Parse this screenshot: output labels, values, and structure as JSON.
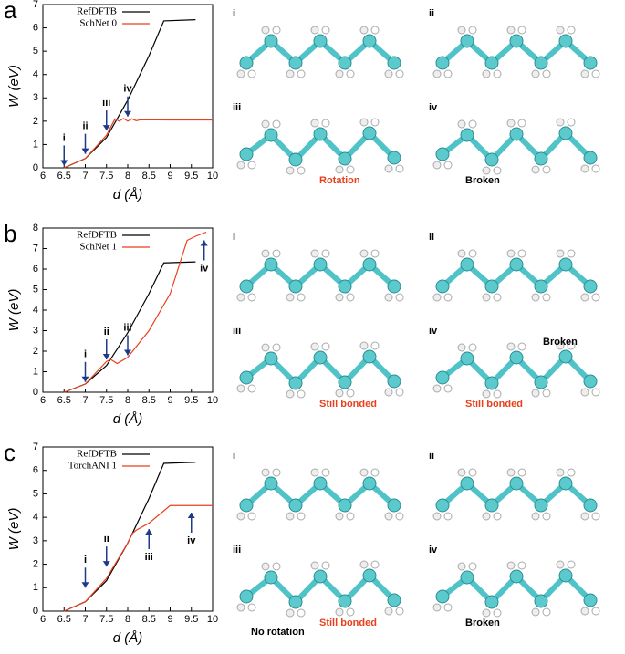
{
  "chart_data": [
    {
      "type": "line",
      "panel": "a",
      "xlabel": "d (Å)",
      "ylabel": "W (eV)",
      "xlim": [
        6,
        10
      ],
      "xticks": [
        6,
        6.5,
        7,
        7.5,
        8,
        8.5,
        9,
        9.5,
        10
      ],
      "ylim": [
        0,
        7
      ],
      "yticks": [
        0,
        1,
        2,
        3,
        4,
        5,
        6,
        7
      ],
      "series": [
        {
          "name": "RefDFTB",
          "color": "#000000",
          "x": [
            6.5,
            7,
            7.5,
            8,
            8.5,
            8.85,
            9.6
          ],
          "values": [
            0,
            0.4,
            1.3,
            2.9,
            4.8,
            6.3,
            6.35
          ]
        },
        {
          "name": "SchNet 0",
          "color": "#e8401c",
          "x": [
            6.5,
            7,
            7.5,
            7.7,
            7.8,
            7.9,
            8,
            8.1,
            8.2,
            8.3,
            9,
            10
          ],
          "values": [
            0,
            0.4,
            1.4,
            2.1,
            2.0,
            2.12,
            2.0,
            2.1,
            2.02,
            2.06,
            2.05,
            2.05
          ]
        }
      ],
      "arrows": [
        {
          "label": "i",
          "x": 6.5,
          "y": 0.1,
          "direction": "down"
        },
        {
          "label": "ii",
          "x": 7,
          "y": 0.6,
          "direction": "down"
        },
        {
          "label": "iii",
          "x": 7.5,
          "y": 1.6,
          "direction": "down"
        },
        {
          "label": "iv",
          "x": 8,
          "y": 2.2,
          "direction": "down"
        }
      ],
      "snapshots": [
        {
          "label": "i"
        },
        {
          "label": "ii"
        },
        {
          "label": "iii",
          "note": "Rotation",
          "note_color": "#e8401c"
        },
        {
          "label": "iv",
          "note": "Broken",
          "note_color": "#000000"
        }
      ]
    },
    {
      "type": "line",
      "panel": "b",
      "xlabel": "d (Å)",
      "ylabel": "W (eV)",
      "xlim": [
        6,
        10
      ],
      "xticks": [
        6,
        6.5,
        7,
        7.5,
        8,
        8.5,
        9,
        9.5,
        10
      ],
      "ylim": [
        0,
        8
      ],
      "yticks": [
        0,
        1,
        2,
        3,
        4,
        5,
        6,
        7,
        8
      ],
      "series": [
        {
          "name": "RefDFTB",
          "color": "#000000",
          "x": [
            6.5,
            7,
            7.5,
            8,
            8.5,
            8.85,
            9.6
          ],
          "values": [
            0,
            0.4,
            1.3,
            2.9,
            4.8,
            6.3,
            6.35
          ]
        },
        {
          "name": "SchNet 1",
          "color": "#e8401c",
          "x": [
            6.5,
            7,
            7.5,
            7.6,
            7.75,
            8,
            8.5,
            9,
            9.4,
            9.6,
            9.85
          ],
          "values": [
            0,
            0.4,
            1.5,
            1.6,
            1.4,
            1.7,
            3.0,
            4.8,
            7.4,
            7.6,
            7.8
          ]
        }
      ],
      "arrows": [
        {
          "label": "i",
          "x": 7,
          "y": 0.5,
          "direction": "down"
        },
        {
          "label": "ii",
          "x": 7.5,
          "y": 1.6,
          "direction": "down"
        },
        {
          "label": "iii",
          "x": 8,
          "y": 1.8,
          "direction": "down"
        },
        {
          "label": "iv",
          "x": 9.8,
          "y": 7.4,
          "direction": "up"
        }
      ],
      "snapshots": [
        {
          "label": "i"
        },
        {
          "label": "ii"
        },
        {
          "label": "iii",
          "note": "Still bonded",
          "note_color": "#e8401c"
        },
        {
          "label": "iv",
          "note": "Still bonded",
          "note_color": "#e8401c",
          "note2": "Broken"
        }
      ]
    },
    {
      "type": "line",
      "panel": "c",
      "xlabel": "d (Å)",
      "ylabel": "W (eV)",
      "xlim": [
        6,
        10
      ],
      "xticks": [
        6,
        6.5,
        7,
        7.5,
        8,
        8.5,
        9,
        9.5,
        10
      ],
      "ylim": [
        0,
        7
      ],
      "yticks": [
        0,
        1,
        2,
        3,
        4,
        5,
        6,
        7
      ],
      "series": [
        {
          "name": "RefDFTB",
          "color": "#000000",
          "x": [
            6.5,
            7,
            7.5,
            8,
            8.5,
            8.85,
            9.6
          ],
          "values": [
            0,
            0.4,
            1.3,
            2.9,
            4.8,
            6.3,
            6.35
          ]
        },
        {
          "name": "TorchANI 1",
          "color": "#e8401c",
          "x": [
            6.5,
            7,
            7.5,
            8,
            8.1,
            8.2,
            8.5,
            9,
            10
          ],
          "values": [
            0,
            0.4,
            1.4,
            2.9,
            3.3,
            3.45,
            3.75,
            4.5,
            4.5
          ]
        }
      ],
      "arrows": [
        {
          "label": "i",
          "x": 7,
          "y": 1.0,
          "direction": "down"
        },
        {
          "label": "ii",
          "x": 7.5,
          "y": 1.9,
          "direction": "down"
        },
        {
          "label": "iii",
          "x": 8.5,
          "y": 3.5,
          "direction": "up"
        },
        {
          "label": "iv",
          "x": 9.5,
          "y": 4.2,
          "direction": "up"
        }
      ],
      "snapshots": [
        {
          "label": "i"
        },
        {
          "label": "ii"
        },
        {
          "label": "iii",
          "note": "Still bonded",
          "note_color": "#e8401c",
          "note2": "No rotation"
        },
        {
          "label": "iv",
          "note": "Broken",
          "note_color": "#000000"
        }
      ]
    }
  ]
}
